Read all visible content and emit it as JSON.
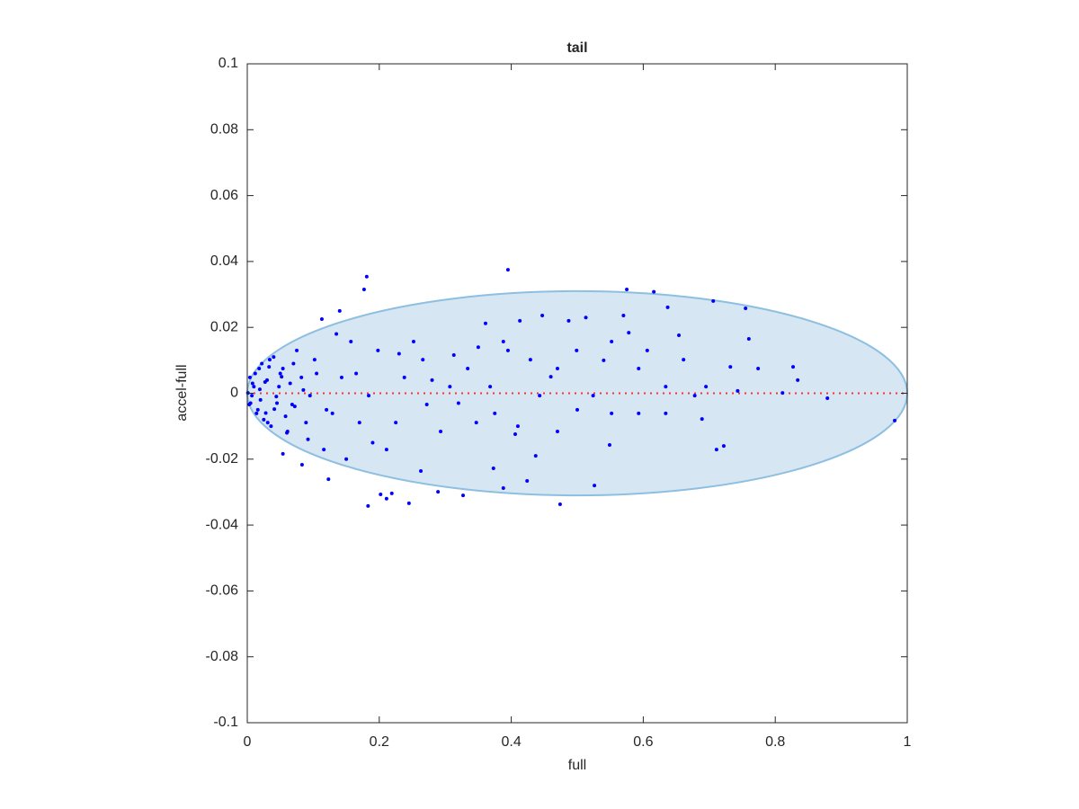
{
  "chart_data": {
    "type": "scatter",
    "title": "tail",
    "x_label": "full",
    "y_label": "accel-full",
    "xlim": [
      0,
      1
    ],
    "ylim": [
      -0.1,
      0.1
    ],
    "xticks": [
      0,
      0.2,
      0.4,
      0.6,
      0.8,
      1
    ],
    "yticks": [
      -0.1,
      -0.08,
      -0.06,
      -0.04,
      -0.02,
      0,
      0.02,
      0.04,
      0.06,
      0.08,
      0.1
    ],
    "grid": false,
    "ellipse": {
      "cx": 0.5,
      "cy": 0,
      "rx": 0.5,
      "ry": 0.031,
      "color": "#d6e6f3",
      "edge_color": "#8dbfe0"
    },
    "reference_line": {
      "y": 0,
      "color": "#ff3030"
    },
    "series": [
      {
        "name": "points",
        "color": "#0000ff",
        "x": [
          0.181,
          0.395,
          0.177,
          0.575,
          0.616,
          0.706,
          0.755,
          0.14,
          0.113,
          0.447,
          0.57,
          0.361,
          0.413,
          0.487,
          0.513,
          0.637,
          0.654,
          0.76,
          0.732,
          0.774,
          0.827,
          0.834,
          0.879,
          0.981,
          0.711,
          0.722,
          0.689,
          0.549,
          0.524,
          0.47,
          0.437,
          0.526,
          0.474,
          0.388,
          0.327,
          0.289,
          0.245,
          0.183,
          0.211,
          0.219,
          0.202,
          0.123,
          0.083,
          0.054,
          0.424,
          0.373,
          0.263,
          0.406,
          0.634,
          0.661,
          0.678,
          0.593,
          0.606,
          0.578,
          0.552,
          0.499,
          0.47,
          0.443,
          0.429,
          0.388,
          0.395,
          0.368,
          0.375,
          0.347,
          0.334,
          0.313,
          0.307,
          0.293,
          0.272,
          0.266,
          0.252,
          0.238,
          0.225,
          0.211,
          0.198,
          0.184,
          0.17,
          0.157,
          0.143,
          0.129,
          0.116,
          0.102,
          0.095,
          0.089,
          0.082,
          0.075,
          0.068,
          0.061,
          0.054,
          0.048,
          0.041,
          0.034,
          0.031,
          0.027,
          0.02,
          0.018,
          0.014,
          0.01,
          0.007,
          0.004,
          0.003,
          0.001,
          0.695,
          0.743,
          0.811,
          0.552,
          0.593,
          0.634,
          0.012,
          0.016,
          0.022,
          0.025,
          0.03,
          0.036,
          0.04,
          0.045,
          0.05,
          0.058,
          0.065,
          0.072,
          0.008,
          0.005,
          0.019,
          0.028,
          0.033,
          0.044,
          0.052,
          0.06,
          0.07,
          0.085,
          0.092,
          0.105,
          0.12,
          0.135,
          0.15,
          0.165,
          0.19,
          0.23,
          0.28,
          0.32,
          0.35,
          0.41,
          0.46,
          0.5,
          0.54
        ],
        "y": [
          0.0354,
          0.0375,
          0.0315,
          0.0315,
          0.0308,
          0.028,
          0.0258,
          0.025,
          0.0225,
          0.0236,
          0.0236,
          0.0212,
          0.022,
          0.022,
          0.023,
          0.0261,
          0.0176,
          0.0165,
          0.008,
          0.0075,
          0.008,
          0.004,
          -0.0015,
          -0.0083,
          -0.0171,
          -0.016,
          -0.0078,
          -0.0157,
          -0.0007,
          -0.0116,
          -0.019,
          -0.028,
          -0.0337,
          -0.0288,
          -0.031,
          -0.0299,
          -0.0334,
          -0.0342,
          -0.032,
          -0.0304,
          -0.0307,
          -0.0261,
          -0.0217,
          -0.0184,
          -0.0266,
          -0.0228,
          -0.0236,
          -0.0124,
          0.002,
          0.0102,
          -0.0007,
          0.0075,
          0.013,
          0.0184,
          0.0157,
          0.013,
          0.0075,
          -0.0007,
          0.0102,
          0.0157,
          0.013,
          0.002,
          -0.0061,
          -0.0089,
          0.0075,
          0.0116,
          0.002,
          -0.0116,
          -0.0034,
          0.0102,
          0.0157,
          0.0048,
          -0.0089,
          -0.0171,
          0.013,
          -0.0007,
          -0.0089,
          0.0157,
          0.0048,
          -0.0061,
          -0.0171,
          0.0102,
          -0.0007,
          -0.0089,
          0.0048,
          0.013,
          -0.0034,
          -0.0116,
          0.0075,
          0.002,
          -0.0048,
          0.0102,
          -0.0089,
          0.0034,
          -0.002,
          0.0075,
          -0.0061,
          0.002,
          -0.0007,
          0.0048,
          -0.0034,
          0.0001,
          0.002,
          0.0007,
          0.0001,
          -0.0061,
          -0.0061,
          -0.0061,
          0.006,
          -0.005,
          0.009,
          -0.008,
          0.004,
          -0.01,
          0.011,
          -0.003,
          0.006,
          -0.007,
          0.003,
          -0.004,
          0.003,
          -0.003,
          0.0012,
          -0.006,
          0.008,
          -0.001,
          0.005,
          -0.012,
          0.009,
          0.001,
          -0.014,
          0.006,
          -0.005,
          0.018,
          -0.02,
          0.006,
          -0.015,
          0.012,
          0.004,
          -0.003,
          0.014,
          -0.01,
          0.005,
          -0.005,
          0.01
        ]
      }
    ]
  }
}
